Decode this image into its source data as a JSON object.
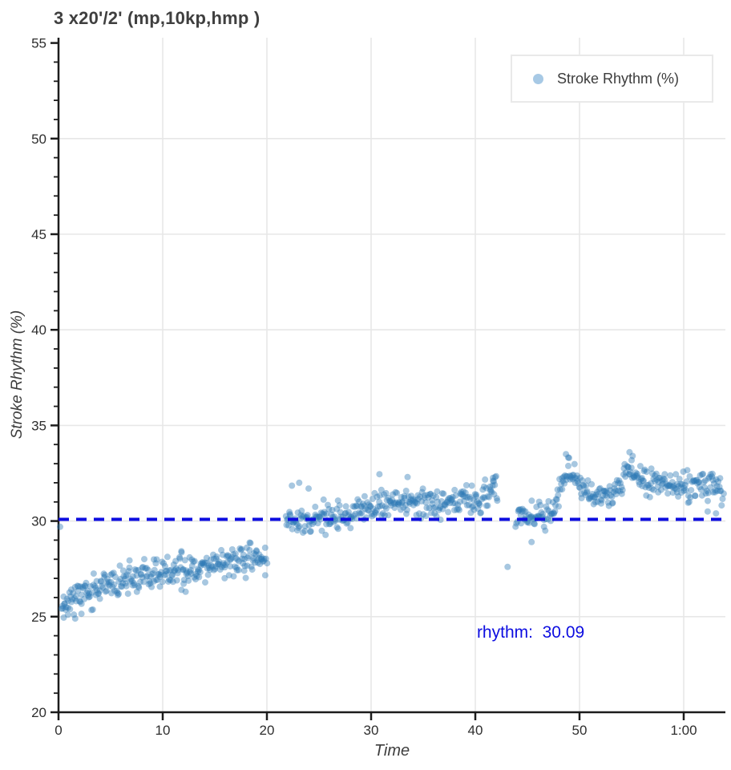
{
  "chart_data": {
    "type": "scatter",
    "title": "3 x20'/2' (mp,10kp,hmp )",
    "xlabel": "Time",
    "ylabel": "Stroke Rhythm (%)",
    "xlim": [
      0,
      64
    ],
    "ylim": [
      20,
      55
    ],
    "x_ticks": [
      {
        "value": 0,
        "label": "0"
      },
      {
        "value": 10,
        "label": "10"
      },
      {
        "value": 20,
        "label": "20"
      },
      {
        "value": 30,
        "label": "30"
      },
      {
        "value": 40,
        "label": "40"
      },
      {
        "value": 50,
        "label": "50"
      },
      {
        "value": 60,
        "label": "1:00"
      }
    ],
    "y_ticks": [
      20,
      25,
      30,
      35,
      40,
      45,
      50,
      55
    ],
    "y_minor_tick_step": 1,
    "grid": {
      "show": true,
      "color": "#e7e7e7"
    },
    "legend": {
      "label": "Stroke Rhythm (%)",
      "marker_color": "#a7c9e5",
      "position": "top-right"
    },
    "marker": {
      "color": "#2e79b5",
      "opacity": 0.42,
      "radius": 4
    },
    "reference_line": {
      "name": "rhythm",
      "value": 30.09,
      "color": "#0d0de0",
      "dash": [
        13,
        9
      ],
      "width": 4
    },
    "annotation": {
      "text": "rhythm:  30.09",
      "x": 40.15,
      "y": 23.85,
      "color": "#0d0de0"
    },
    "random_seed": 11,
    "series": [
      {
        "name": "Stroke Rhythm (%)",
        "segments": [
          {
            "t_start": 0.3,
            "t_end": 20.0,
            "n": 305,
            "sd": 0.38,
            "trend": [
              [
                0.3,
                25.75
              ],
              [
                1.5,
                26.0
              ],
              [
                3,
                26.35
              ],
              [
                5,
                26.65
              ],
              [
                7,
                26.95
              ],
              [
                9,
                27.15
              ],
              [
                11,
                27.3
              ],
              [
                13,
                27.55
              ],
              [
                15,
                27.75
              ],
              [
                17,
                27.9
              ],
              [
                18.5,
                28.0
              ],
              [
                20,
                27.95
              ]
            ]
          },
          {
            "t_start": 21.8,
            "t_end": 42.1,
            "n": 305,
            "sd": 0.38,
            "trend": [
              [
                21.8,
                30.3
              ],
              [
                23.5,
                29.95
              ],
              [
                25.5,
                30.1
              ],
              [
                27.5,
                30.25
              ],
              [
                29.5,
                30.6
              ],
              [
                32,
                30.9
              ],
              [
                35,
                31.0
              ],
              [
                38,
                31.05
              ],
              [
                40.5,
                31.2
              ],
              [
                41.6,
                31.5
              ],
              [
                42.1,
                31.6
              ]
            ]
          },
          {
            "t_start": 43.9,
            "t_end": 63.8,
            "n": 300,
            "sd": 0.35,
            "trend": [
              [
                43.9,
                30.3
              ],
              [
                45.5,
                30.4
              ],
              [
                46.9,
                30.3
              ],
              [
                47.7,
                30.7
              ],
              [
                48.4,
                32.3
              ],
              [
                49.1,
                32.6
              ],
              [
                49.9,
                31.9
              ],
              [
                51,
                31.5
              ],
              [
                52.4,
                31.1
              ],
              [
                53.2,
                31.4
              ],
              [
                54.3,
                32.3
              ],
              [
                55,
                32.6
              ],
              [
                55.8,
                32.3
              ],
              [
                56.8,
                32.05
              ],
              [
                58,
                31.95
              ],
              [
                60,
                31.9
              ],
              [
                62,
                31.9
              ],
              [
                63.8,
                31.75
              ]
            ]
          }
        ],
        "outliers": [
          [
            0.15,
            29.7
          ],
          [
            0.5,
            24.95
          ],
          [
            0.9,
            25.1
          ],
          [
            1.6,
            24.9
          ],
          [
            2.2,
            25.15
          ],
          [
            11.8,
            26.4
          ],
          [
            12.2,
            26.3
          ],
          [
            22.4,
            31.85
          ],
          [
            23.1,
            32.0
          ],
          [
            24.0,
            31.7
          ],
          [
            30.8,
            32.45
          ],
          [
            33.5,
            32.3
          ],
          [
            41.7,
            32.1
          ],
          [
            41.9,
            32.3
          ],
          [
            43.1,
            27.6
          ],
          [
            45.4,
            28.9
          ],
          [
            48.7,
            33.5
          ],
          [
            49.0,
            33.3
          ],
          [
            54.8,
            33.6
          ],
          [
            55.1,
            33.4
          ],
          [
            62.3,
            30.5
          ],
          [
            63.1,
            30.4
          ]
        ]
      }
    ]
  },
  "styles": {
    "title_color": "#3f3f3f",
    "axis_color": "#1c1c1c",
    "tick_label_color": "#2e2e2e",
    "grid_color": "#e7e7e7",
    "accent_blue": "#0d0de0"
  }
}
